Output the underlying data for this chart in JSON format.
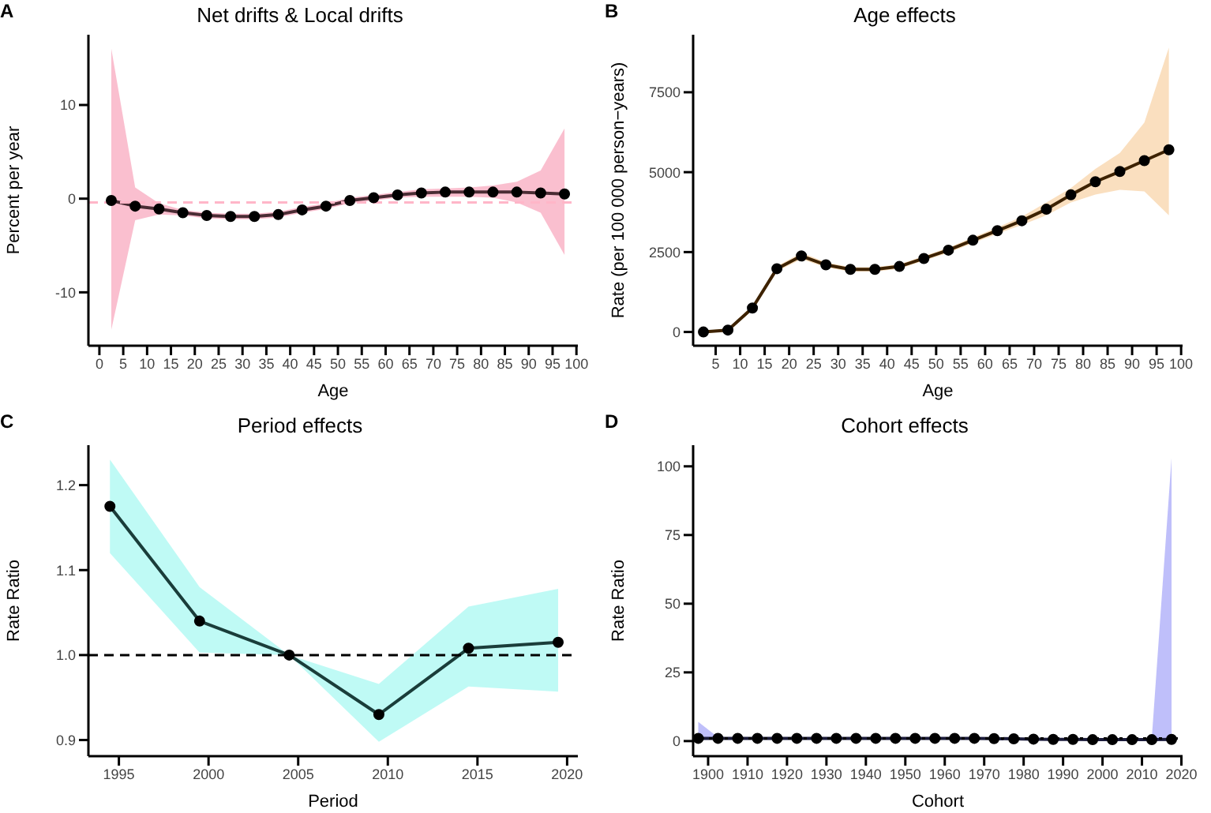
{
  "chart_data": [
    {
      "type": "line",
      "title": "Net drifts & Local drifts",
      "xlabel": "Age",
      "ylabel": "Percent per year",
      "annotations": [
        "A"
      ],
      "marker": "circle",
      "x": [
        2.5,
        7.5,
        12.5,
        17.5,
        22.5,
        27.5,
        32.5,
        37.5,
        42.5,
        47.5,
        52.5,
        57.5,
        62.5,
        67.5,
        72.5,
        77.5,
        82.5,
        87.5,
        92.5,
        97.5
      ],
      "series": [
        {
          "color": "#4a2c34",
          "values": [
            -0.2,
            -0.8,
            -1.1,
            -1.5,
            -1.8,
            -1.9,
            -1.9,
            -1.7,
            -1.2,
            -0.8,
            -0.2,
            0.1,
            0.4,
            0.6,
            0.7,
            0.7,
            0.7,
            0.7,
            0.6,
            0.5
          ],
          "lower": [
            -14,
            -2.3,
            -1.7,
            -1.8,
            -2.1,
            -2.2,
            -2.2,
            -2.0,
            -1.5,
            -1.1,
            -0.5,
            -0.2,
            0.1,
            0.2,
            0.2,
            0.2,
            0.1,
            -0.4,
            -1.5,
            -6
          ],
          "upper": [
            16,
            1.2,
            -0.5,
            -1.2,
            -1.5,
            -1.6,
            -1.6,
            -1.4,
            -0.9,
            -0.5,
            0.1,
            0.4,
            0.7,
            1.0,
            1.1,
            1.2,
            1.4,
            1.8,
            3,
            7.5
          ]
        }
      ],
      "ref_lines": [
        {
          "axis": "y",
          "value": -0.4,
          "color": "#ffb6c8",
          "line_style": "dashed"
        }
      ],
      "xlim": [
        -2.3,
        100.3
      ],
      "xticks": [
        0,
        5,
        10,
        15,
        20,
        25,
        30,
        35,
        40,
        45,
        50,
        55,
        60,
        65,
        70,
        75,
        80,
        85,
        90,
        95,
        100
      ],
      "ylim": [
        -15.7,
        17.5
      ],
      "yticks": [
        -10,
        0,
        10
      ],
      "grid": false
    },
    {
      "type": "line",
      "title": "Age effects",
      "xlabel": "Age",
      "ylabel": "Rate (per 100 000 person−years)",
      "annotations": [
        "B"
      ],
      "marker": "circle",
      "x": [
        2.5,
        7.5,
        12.5,
        17.5,
        22.5,
        27.5,
        32.5,
        37.5,
        42.5,
        47.5,
        52.5,
        57.5,
        62.5,
        67.5,
        72.5,
        77.5,
        82.5,
        87.5,
        92.5,
        97.5
      ],
      "series": [
        {
          "color": "#3d2200",
          "values": [
            0,
            60,
            750,
            1980,
            2380,
            2100,
            1960,
            1960,
            2050,
            2300,
            2560,
            2870,
            3170,
            3480,
            3840,
            4290,
            4700,
            5020,
            5360,
            5700
          ],
          "lower": [
            -40,
            20,
            680,
            1900,
            2280,
            2020,
            1890,
            1890,
            1980,
            2230,
            2480,
            2780,
            3070,
            3350,
            3650,
            4050,
            4300,
            4450,
            4400,
            3650
          ],
          "upper": [
            40,
            100,
            820,
            2060,
            2480,
            2180,
            2030,
            2030,
            2120,
            2370,
            2640,
            2960,
            3270,
            3610,
            4050,
            4500,
            5100,
            5600,
            6550,
            8900
          ]
        }
      ],
      "xlim": [
        0.4,
        100.3
      ],
      "xticks": [
        5,
        10,
        15,
        20,
        25,
        30,
        35,
        40,
        45,
        50,
        55,
        60,
        65,
        70,
        75,
        80,
        85,
        90,
        95,
        100
      ],
      "ylim": [
        -430,
        9300
      ],
      "yticks": [
        0,
        2500,
        5000,
        7500
      ],
      "grid": false
    },
    {
      "type": "line",
      "title": "Period effects",
      "xlabel": "Period",
      "ylabel": "Rate Ratio",
      "annotations": [
        "C"
      ],
      "marker": "circle",
      "x": [
        1994.5,
        1999.5,
        2004.5,
        2009.5,
        2014.5,
        2019.5
      ],
      "series": [
        {
          "color": "#1a3d3a",
          "values": [
            1.175,
            1.04,
            1.0,
            0.93,
            1.008,
            1.015
          ],
          "lower": [
            1.12,
            1.003,
            1.0,
            0.898,
            0.963,
            0.957
          ],
          "upper": [
            1.23,
            1.08,
            1.0,
            0.966,
            1.057,
            1.078
          ]
        }
      ],
      "ref_lines": [
        {
          "axis": "y",
          "value": 1,
          "color": "#000000",
          "line_style": "dashed"
        }
      ],
      "xlim": [
        1993.3,
        2020.6
      ],
      "xticks": [
        1995,
        2000,
        2005,
        2010,
        2015,
        2020
      ],
      "ylim": [
        0.881,
        1.247
      ],
      "yticks": [
        {
          "value": 0.9,
          "label": "0.9"
        },
        {
          "value": 1,
          "label": "1.0"
        },
        {
          "value": 1.1,
          "label": "1.1"
        },
        {
          "value": 1.2,
          "label": "1.2"
        }
      ],
      "grid": false
    },
    {
      "type": "line",
      "title": "Cohort effects",
      "xlabel": "Cohort",
      "ylabel": "Rate Ratio",
      "annotations": [
        "D"
      ],
      "marker": "circle",
      "x": [
        1897.5,
        1902.5,
        1907.5,
        1912.5,
        1917.5,
        1922.5,
        1927.5,
        1932.5,
        1937.5,
        1942.5,
        1947.5,
        1952.5,
        1957.5,
        1962.5,
        1967.5,
        1972.5,
        1977.5,
        1982.5,
        1987.5,
        1992.5,
        1997.5,
        2002.5,
        2007.5,
        2012.5,
        2017.5
      ],
      "series": [
        {
          "color": "#1b1b3a",
          "values": [
            1,
            1,
            1,
            1,
            1,
            1,
            1,
            1,
            1,
            1,
            1,
            1,
            1,
            1,
            1,
            0.9,
            0.8,
            0.7,
            0.6,
            0.6,
            0.5,
            0.5,
            0.5,
            0.5,
            0.6
          ],
          "lower": [
            0.4,
            0.7,
            0.8,
            0.8,
            0.8,
            0.8,
            0.8,
            0.8,
            0.8,
            0.8,
            0.8,
            0.8,
            0.8,
            0.8,
            0.8,
            0.7,
            0.6,
            0.5,
            0.4,
            0.4,
            0.3,
            0.3,
            0.3,
            0.2,
            0.05
          ],
          "upper": [
            7,
            1.4,
            1.2,
            1.2,
            1.2,
            1.2,
            1.2,
            1.2,
            1.2,
            1.2,
            1.2,
            1.2,
            1.2,
            1.2,
            1.2,
            1.1,
            1.0,
            0.9,
            0.8,
            0.8,
            0.7,
            0.7,
            0.8,
            1.2,
            103
          ]
        }
      ],
      "ref_lines": [
        {
          "axis": "y",
          "value": 1,
          "color": "#000000",
          "line_style": "dotted"
        }
      ],
      "xlim": [
        1896.2,
        2020.3
      ],
      "xticks": [
        1900,
        1910,
        1920,
        1930,
        1940,
        1950,
        1960,
        1970,
        1980,
        1990,
        2000,
        2010,
        2020
      ],
      "ylim": [
        -5.5,
        107.7
      ],
      "yticks": [
        0,
        25,
        50,
        75,
        100
      ],
      "grid": false
    }
  ]
}
